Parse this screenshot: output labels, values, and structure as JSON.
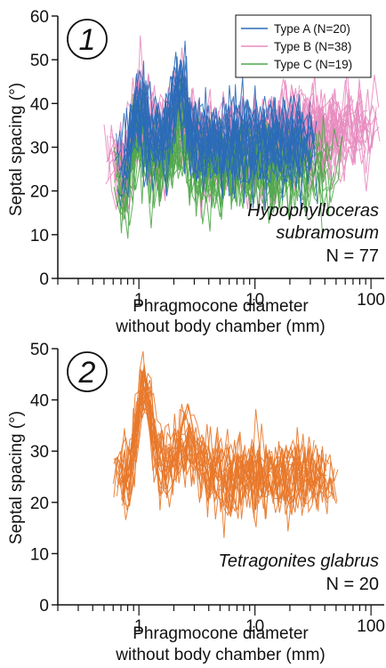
{
  "chart_data": [
    {
      "type": "line",
      "panel_label": "1",
      "xlabel_line1": "Phragmocone diameter",
      "xlabel_line2": "without body chamber (mm)",
      "ylabel": "Septal spacing (°)",
      "x_scale": "log",
      "xlim": [
        0.2,
        130
      ],
      "ylim": [
        0,
        60
      ],
      "x_ticks": [
        {
          "v": 1,
          "label": "1"
        },
        {
          "v": 10,
          "label": "10"
        },
        {
          "v": 100,
          "label": "100"
        }
      ],
      "y_ticks": [
        {
          "v": 0,
          "label": "0"
        },
        {
          "v": 10,
          "label": "10"
        },
        {
          "v": 20,
          "label": "20"
        },
        {
          "v": 30,
          "label": "30"
        },
        {
          "v": 40,
          "label": "40"
        },
        {
          "v": 50,
          "label": "50"
        },
        {
          "v": 60,
          "label": "60"
        }
      ],
      "legend_position": "top-right",
      "series": [
        {
          "name": "Type A (N=20)",
          "color": "#2b6cb8",
          "n": 20
        },
        {
          "name": "Type B (N=38)",
          "color": "#e88cc0",
          "n": 38
        },
        {
          "name": "Type C (N=19)",
          "color": "#4fa94a",
          "n": 19
        }
      ],
      "annotation": {
        "species_line1": "Hypophylloceras",
        "species_line2": "subramosum",
        "n_text": "N = 77"
      }
    },
    {
      "type": "line",
      "panel_label": "2",
      "xlabel_line1": "Phragmocone diameter",
      "xlabel_line2": "without body chamber (mm)",
      "ylabel": "Septal spacing (°)",
      "x_scale": "log",
      "xlim": [
        0.2,
        130
      ],
      "ylim": [
        0,
        50
      ],
      "x_ticks": [
        {
          "v": 1,
          "label": "1"
        },
        {
          "v": 10,
          "label": "10"
        },
        {
          "v": 100,
          "label": "100"
        }
      ],
      "y_ticks": [
        {
          "v": 0,
          "label": "0"
        },
        {
          "v": 10,
          "label": "10"
        },
        {
          "v": 20,
          "label": "20"
        },
        {
          "v": 30,
          "label": "30"
        },
        {
          "v": 40,
          "label": "40"
        },
        {
          "v": 50,
          "label": "50"
        }
      ],
      "series": [
        {
          "color": "#e8782a",
          "n": 20
        }
      ],
      "annotation": {
        "species_line1": "Tetragonites glabrus",
        "n_text": "N = 20"
      }
    }
  ]
}
